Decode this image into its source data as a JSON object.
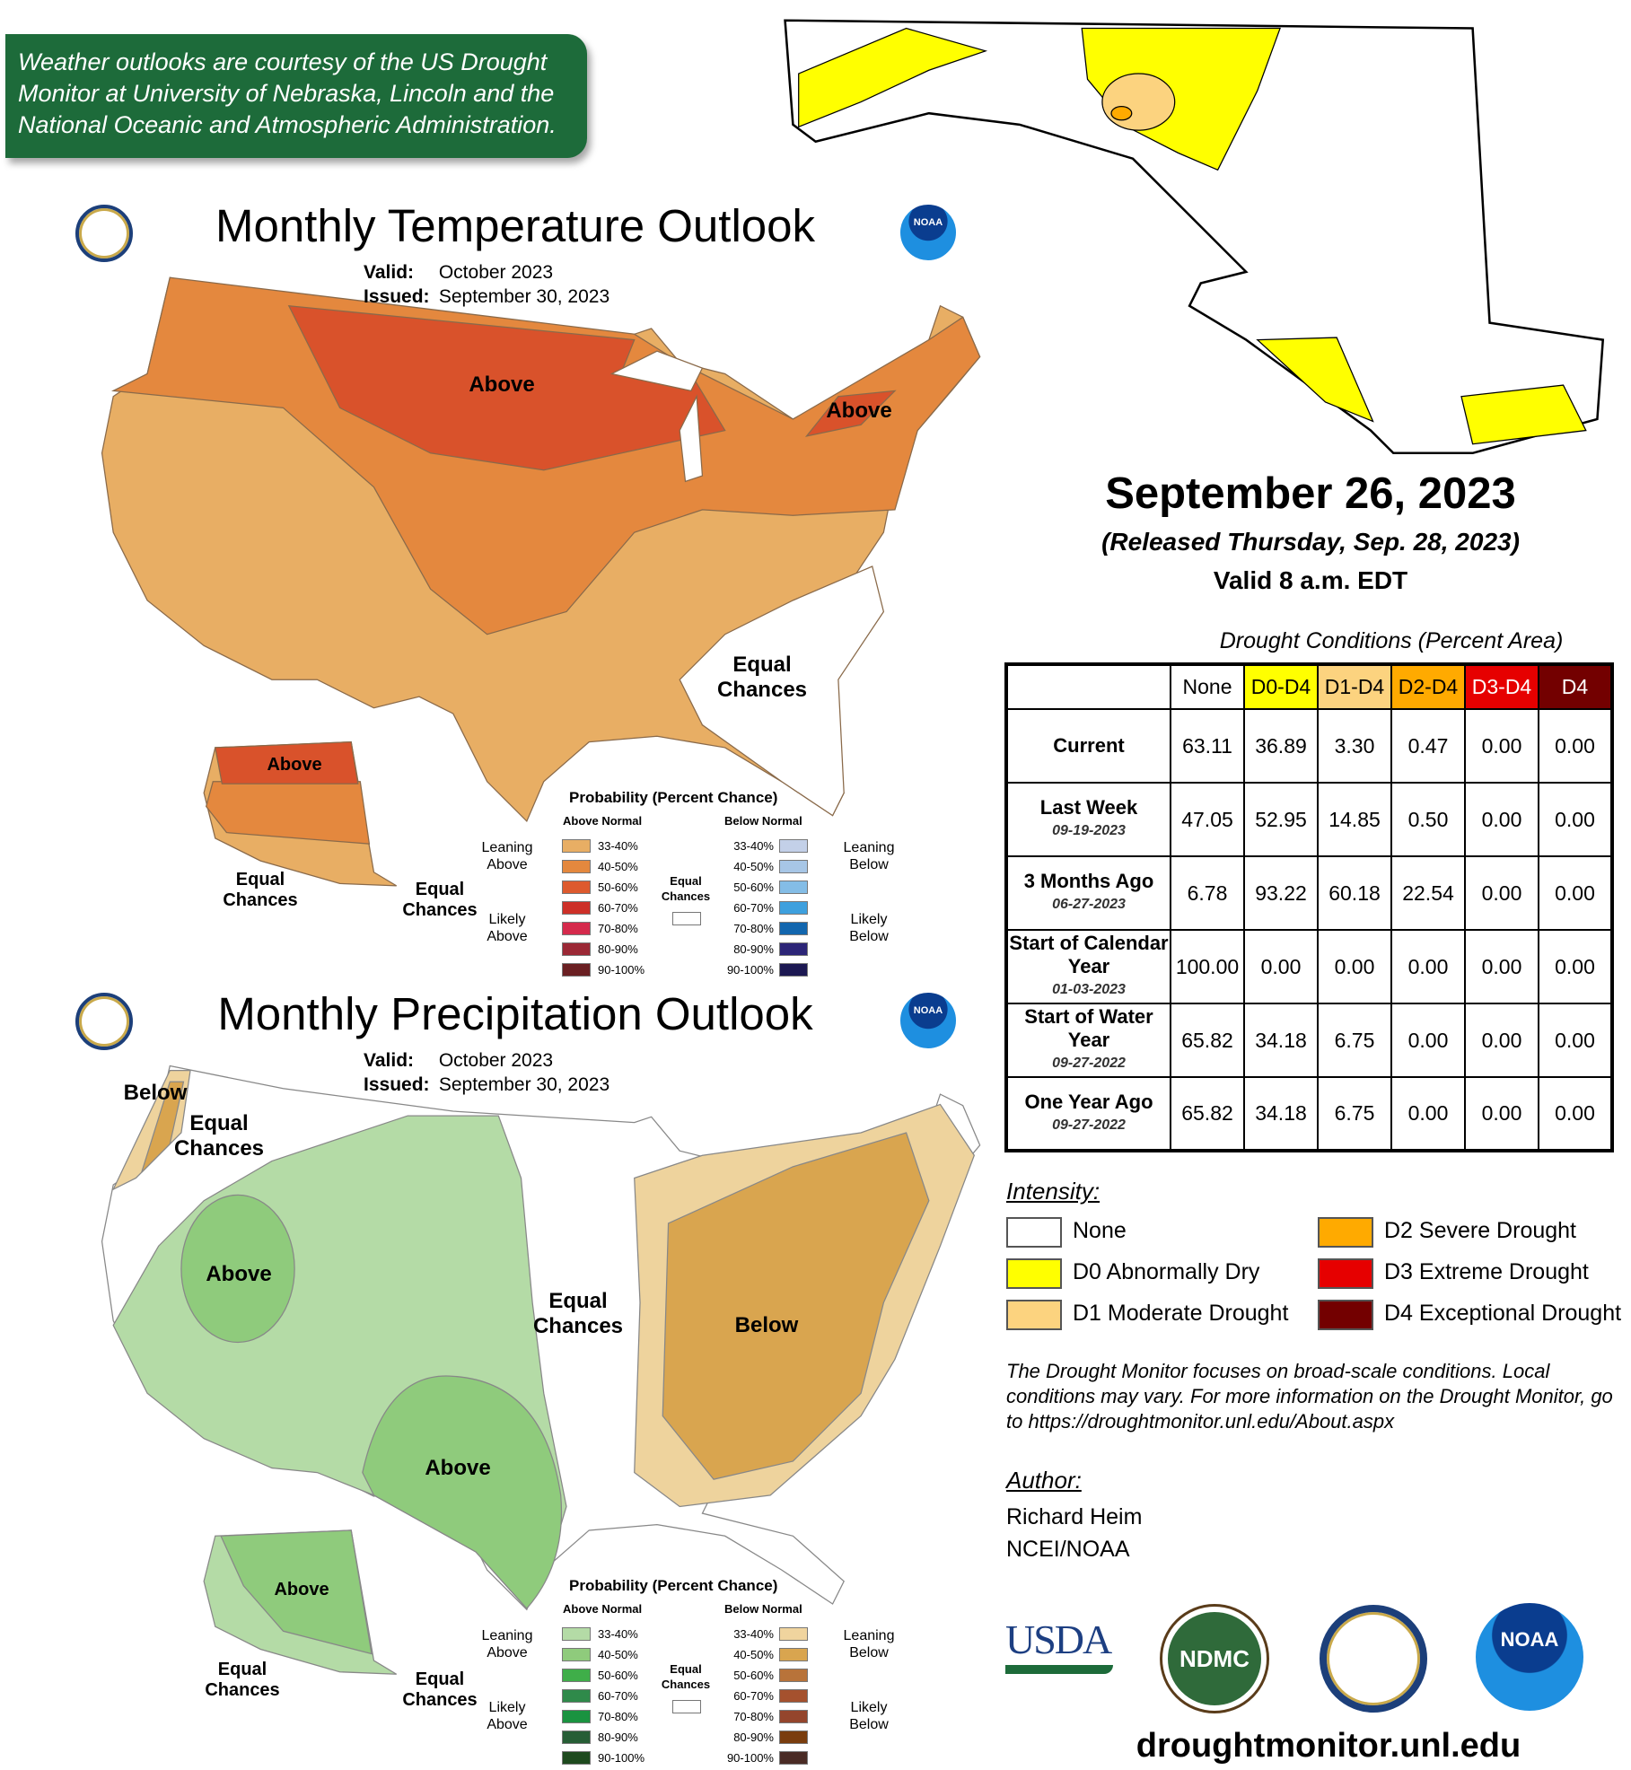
{
  "banner": {
    "text": "Weather outlooks are courtesy of the US Drought Monitor at University of Nebraska, Lincoln and the National Oceanic and Atmospheric Administration."
  },
  "temperature_outlook": {
    "title": "Monthly Temperature Outlook",
    "valid_label": "Valid:",
    "valid_value": "October 2023",
    "issued_label": "Issued:",
    "issued_value": "September 30, 2023",
    "labels": [
      "Above",
      "Above",
      "Equal Chances",
      "Above",
      "Equal Chances",
      "Equal Chances"
    ],
    "colors": {
      "leaning": "#e8ae64",
      "leaning_40": "#e4883e",
      "likely": "#d9522b"
    }
  },
  "precipitation_outlook": {
    "title": "Monthly Precipitation Outlook",
    "valid_label": "Valid:",
    "valid_value": "October 2023",
    "issued_label": "Issued:",
    "issued_value": "September 30, 2023",
    "labels": [
      "Below",
      "Equal Chances",
      "Above",
      "Equal Chances",
      "Below",
      "Above",
      "Above",
      "Equal Chances",
      "Equal Chances"
    ]
  },
  "legend": {
    "title": "Probability (Percent Chance)",
    "above_header": "Above Normal",
    "below_header": "Below Normal",
    "leaning_above": "Leaning Above",
    "likely_above": "Likely Above",
    "leaning_below": "Leaning Below",
    "likely_below": "Likely Below",
    "equal_chances": "Equal Chances",
    "ranges": [
      "33-40%",
      "40-50%",
      "50-60%",
      "60-70%",
      "70-80%",
      "80-90%",
      "90-100%"
    ],
    "temp_above_colors": [
      "#e8ae64",
      "#e4883e",
      "#dd5a2e",
      "#cd3028",
      "#d52a4c",
      "#9b2835",
      "#6a1f22"
    ],
    "temp_below_colors": [
      "#c3d0e8",
      "#a7c6e6",
      "#84bde6",
      "#3ea0de",
      "#1266ae",
      "#2c2577",
      "#1c1852"
    ],
    "precip_above_colors": [
      "#b4dba6",
      "#8fcb7c",
      "#3fae49",
      "#2f8a4a",
      "#1a9340",
      "#275e36",
      "#1e4a1e"
    ],
    "precip_below_colors": [
      "#f0d49e",
      "#d9a54f",
      "#b8733a",
      "#a5512e",
      "#94452c",
      "#7a3d0e",
      "#4a2b25"
    ]
  },
  "drought": {
    "date": "September 26, 2023",
    "released": "(Released Thursday, Sep. 28, 2023)",
    "valid": "Valid 8 a.m. EDT",
    "table_caption": "Drought Conditions (Percent Area)",
    "columns": [
      "None",
      "D0-D4",
      "D1-D4",
      "D2-D4",
      "D3-D4",
      "D4"
    ],
    "column_colors": [
      "#ffffff",
      "#ffff00",
      "#fcd37f",
      "#ffaa00",
      "#e60000",
      "#730000"
    ],
    "rows": [
      {
        "label": "Current",
        "date": "",
        "values": [
          "63.11",
          "36.89",
          "3.30",
          "0.47",
          "0.00",
          "0.00"
        ]
      },
      {
        "label": "Last Week",
        "date": "09-19-2023",
        "values": [
          "47.05",
          "52.95",
          "14.85",
          "0.50",
          "0.00",
          "0.00"
        ]
      },
      {
        "label": "3 Months Ago",
        "date": "06-27-2023",
        "values": [
          "6.78",
          "93.22",
          "60.18",
          "22.54",
          "0.00",
          "0.00"
        ]
      },
      {
        "label": "Start of Calendar Year",
        "date": "01-03-2023",
        "values": [
          "100.00",
          "0.00",
          "0.00",
          "0.00",
          "0.00",
          "0.00"
        ]
      },
      {
        "label": "Start of Water Year",
        "date": "09-27-2022",
        "values": [
          "65.82",
          "34.18",
          "6.75",
          "0.00",
          "0.00",
          "0.00"
        ]
      },
      {
        "label": "One Year Ago",
        "date": "09-27-2022",
        "values": [
          "65.82",
          "34.18",
          "6.75",
          "0.00",
          "0.00",
          "0.00"
        ]
      }
    ],
    "intensity_title": "Intensity:",
    "intensity": [
      {
        "label": "None",
        "color": "#ffffff"
      },
      {
        "label": "D0 Abnormally Dry",
        "color": "#ffff00"
      },
      {
        "label": "D1 Moderate Drought",
        "color": "#fcd37f"
      },
      {
        "label": "D2 Severe Drought",
        "color": "#ffaa00"
      },
      {
        "label": "D3 Extreme Drought",
        "color": "#e60000"
      },
      {
        "label": "D4 Exceptional Drought",
        "color": "#730000"
      }
    ],
    "note": "The Drought Monitor focuses on broad-scale conditions. Local conditions may vary. For more information on the Drought Monitor, go to https://droughtmonitor.unl.edu/About.aspx",
    "author_title": "Author:",
    "author_name": "Richard Heim",
    "author_org": "NCEI/NOAA",
    "logos": [
      "USDA",
      "NDMC",
      "NOAA"
    ],
    "url": "droughtmonitor.unl.edu"
  }
}
